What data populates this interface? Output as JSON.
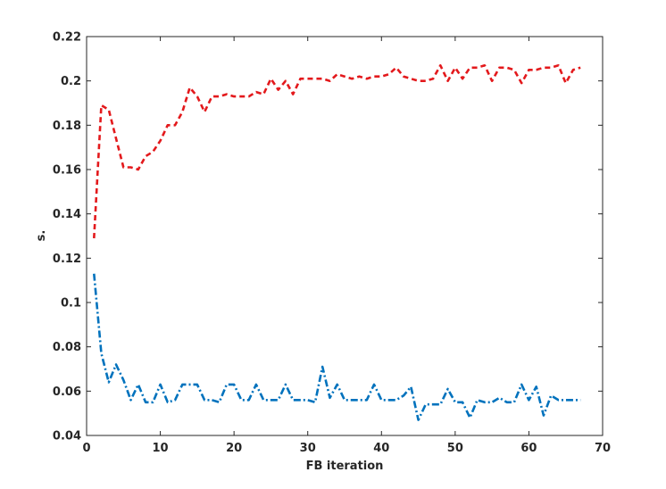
{
  "chart_data": {
    "type": "line",
    "xlabel": "FB iteration",
    "ylabel": "s.",
    "xlim": [
      0,
      70
    ],
    "ylim": [
      0.04,
      0.22
    ],
    "xticks": [
      "0",
      "10",
      "20",
      "30",
      "40",
      "50",
      "60",
      "70"
    ],
    "yticks": [
      "0.04",
      "0.06",
      "0.08",
      "0.1",
      "0.12",
      "0.14",
      "0.16",
      "0.18",
      "0.2",
      "0.22"
    ],
    "grid": false,
    "x": [
      1,
      2,
      3,
      4,
      5,
      6,
      7,
      8,
      9,
      10,
      11,
      12,
      13,
      14,
      15,
      16,
      17,
      18,
      19,
      20,
      21,
      22,
      23,
      24,
      25,
      26,
      27,
      28,
      29,
      30,
      31,
      32,
      33,
      34,
      35,
      36,
      37,
      38,
      39,
      40,
      41,
      42,
      43,
      44,
      45,
      46,
      47,
      48,
      49,
      50,
      51,
      52,
      53,
      54,
      55,
      56,
      57,
      58,
      59,
      60,
      61,
      62,
      63,
      64,
      65,
      66,
      67
    ],
    "series": [
      {
        "color": "#e3191c",
        "dash": "dashed",
        "values": [
          0.129,
          0.189,
          0.187,
          0.174,
          0.161,
          0.161,
          0.16,
          0.166,
          0.168,
          0.173,
          0.18,
          0.18,
          0.186,
          0.197,
          0.193,
          0.186,
          0.193,
          0.193,
          0.194,
          0.193,
          0.193,
          0.193,
          0.195,
          0.194,
          0.201,
          0.196,
          0.2,
          0.194,
          0.201,
          0.201,
          0.201,
          0.201,
          0.2,
          0.203,
          0.202,
          0.201,
          0.202,
          0.201,
          0.202,
          0.202,
          0.203,
          0.206,
          0.202,
          0.201,
          0.2,
          0.2,
          0.201,
          0.207,
          0.2,
          0.206,
          0.201,
          0.206,
          0.206,
          0.207,
          0.2,
          0.206,
          0.206,
          0.205,
          0.199,
          0.205,
          0.205,
          0.206,
          0.206,
          0.207,
          0.199,
          0.205,
          0.206
        ]
      },
      {
        "color": "#0072bd",
        "dash": "dash-dot",
        "values": [
          0.113,
          0.077,
          0.064,
          0.072,
          0.065,
          0.056,
          0.063,
          0.055,
          0.055,
          0.063,
          0.055,
          0.056,
          0.063,
          0.063,
          0.063,
          0.056,
          0.056,
          0.055,
          0.063,
          0.063,
          0.056,
          0.056,
          0.063,
          0.056,
          0.056,
          0.056,
          0.063,
          0.056,
          0.056,
          0.056,
          0.055,
          0.071,
          0.057,
          0.063,
          0.056,
          0.056,
          0.056,
          0.056,
          0.063,
          0.056,
          0.056,
          0.056,
          0.058,
          0.062,
          0.047,
          0.054,
          0.054,
          0.054,
          0.061,
          0.055,
          0.055,
          0.048,
          0.056,
          0.055,
          0.055,
          0.057,
          0.055,
          0.055,
          0.063,
          0.056,
          0.062,
          0.049,
          0.058,
          0.056,
          0.056,
          0.056,
          0.056
        ]
      }
    ]
  }
}
